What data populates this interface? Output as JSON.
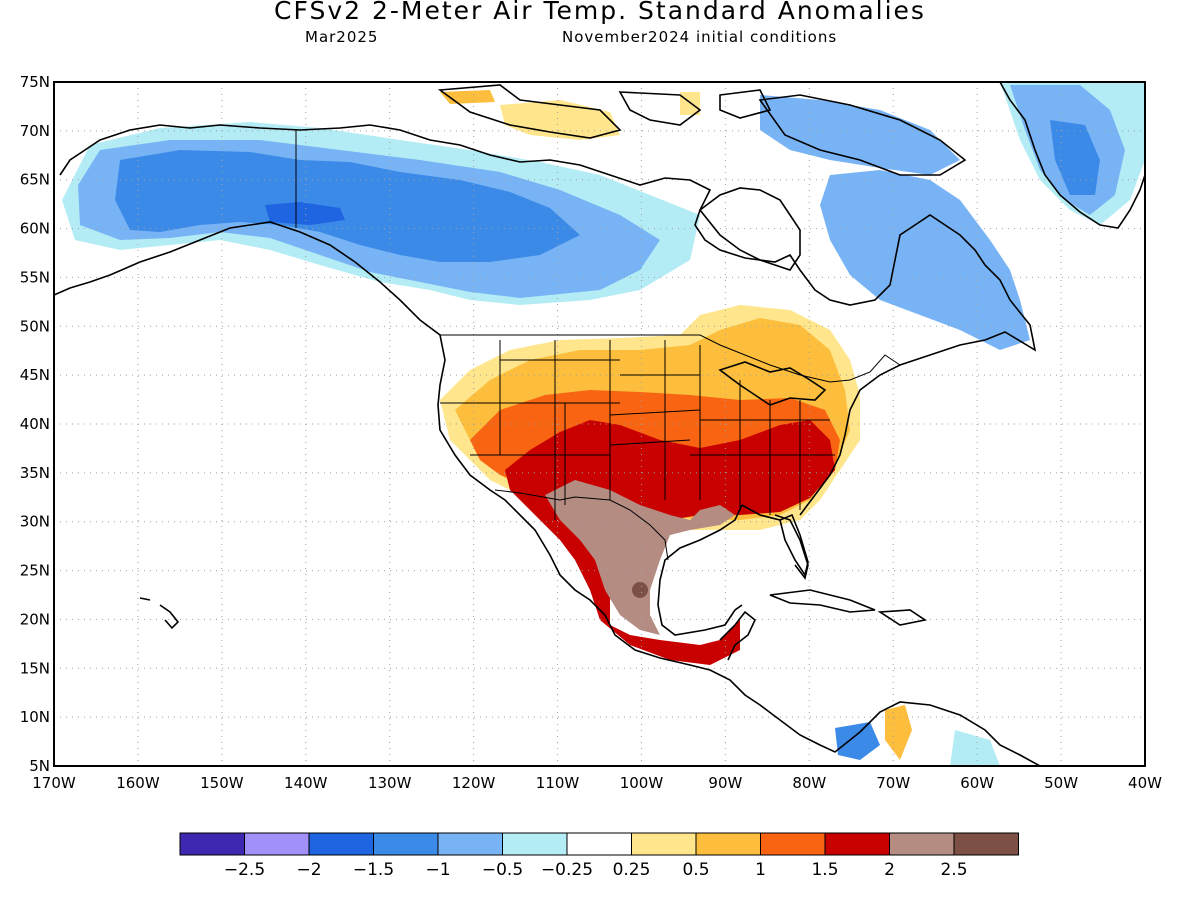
{
  "header": {
    "title": "CFSv2 2-Meter Air Temp. Standard Anomalies",
    "valid_month": "Mar2025",
    "init_conditions": "November2024 initial conditions"
  },
  "axes": {
    "lat_labels": [
      "75N",
      "70N",
      "65N",
      "60N",
      "55N",
      "50N",
      "45N",
      "40N",
      "35N",
      "30N",
      "25N",
      "20N",
      "15N",
      "10N",
      "5N"
    ],
    "lon_labels": [
      "170W",
      "160W",
      "150W",
      "140W",
      "130W",
      "120W",
      "110W",
      "100W",
      "90W",
      "80W",
      "70W",
      "60W",
      "50W",
      "40W"
    ]
  },
  "colorbar": {
    "colors": [
      "#3f28b0",
      "#a090f8",
      "#1f64e0",
      "#3c8ae8",
      "#78b4f5",
      "#b4ecf5",
      "#ffffff",
      "#ffe68c",
      "#fcbe3c",
      "#f86412",
      "#c80000",
      "#b48c82",
      "#7d5046"
    ],
    "labels": [
      "−2.5",
      "−2",
      "−1.5",
      "−1",
      "−0.5",
      "−0.25",
      "0.25",
      "0.5",
      "1",
      "1.5",
      "2",
      "2.5"
    ]
  },
  "regions": [
    {
      "name": "alaska-yukon-cold-anomaly",
      "level": "-1 to -1.5",
      "color": "#3c8ae8"
    },
    {
      "name": "southern-us-warm-anomaly",
      "level": "1.5 to 2",
      "color": "#c80000"
    },
    {
      "name": "mexico-warm-anomaly",
      "level": "2 to 2.5",
      "color": "#b48c82"
    },
    {
      "name": "greenland-cold-anomaly",
      "level": "-1 to -1.5",
      "color": "#3c8ae8"
    }
  ]
}
